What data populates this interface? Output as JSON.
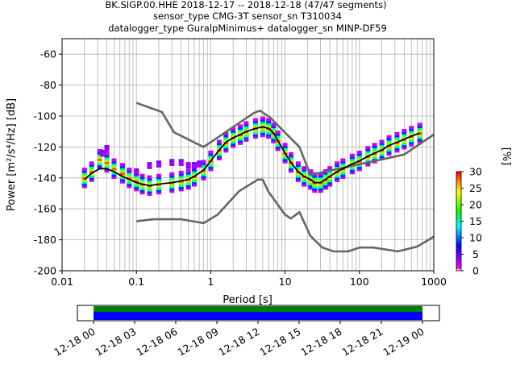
{
  "title_lines": [
    "BK.SIGP.00.HHE   2018-12-17 -- 2018-12-18  (47/47 segments)",
    "sensor_type CMG-3T sensor_sn T310034",
    "datalogger_type GuralpMinimus+ datalogger_sn MINP-DF59"
  ],
  "chart_data": {
    "type": "line",
    "title": "BK.SIGP.00.HHE   2018-12-17 -- 2018-12-18  (47/47 segments)",
    "xlabel": "Period [s]",
    "ylabel": "Power [m²/s⁴/Hz] [dB]",
    "xscale": "log",
    "xlim": [
      0.01,
      1000
    ],
    "ylim": [
      -200,
      -50
    ],
    "x_tick_labels": [
      "0.01",
      "0.1",
      "1",
      "10",
      "100",
      "1000"
    ],
    "y_ticks": [
      -200,
      -180,
      -160,
      -140,
      -120,
      -100,
      -80,
      -60
    ],
    "grid": true,
    "series": [
      {
        "name": "",
        "role": "NHNM",
        "color": "#666666",
        "x": [
          0.1,
          0.22,
          0.32,
          0.8,
          3.8,
          4.6,
          6.3,
          15.6,
          21.9,
          400,
          1000
        ],
        "y": [
          -91.5,
          -97.4,
          -110.5,
          -120,
          -98,
          -96.5,
          -101,
          -120,
          -138,
          -124.9,
          -112
        ]
      },
      {
        "name": "",
        "role": "NLNM",
        "color": "#666666",
        "x": [
          0.1,
          0.17,
          0.4,
          0.8,
          1.24,
          2.4,
          4.3,
          5.0,
          6.0,
          10.0,
          12.0,
          15.6,
          21.9,
          31.6,
          45,
          70,
          101,
          154,
          328,
          600,
          1000
        ],
        "y": [
          -168,
          -166.7,
          -166.7,
          -169.2,
          -163.7,
          -148.6,
          -141.1,
          -141.1,
          -149,
          -163.8,
          -166.2,
          -162.1,
          -177.5,
          -185,
          -187.5,
          -187.5,
          -185,
          -185,
          -187.5,
          -184.4,
          -178
        ]
      },
      {
        "name": "",
        "role": "mode",
        "color": "#000000",
        "x": [
          0.02,
          0.025,
          0.032,
          0.04,
          0.05,
          0.065,
          0.08,
          0.1,
          0.12,
          0.15,
          0.2,
          0.3,
          0.4,
          0.5,
          0.6,
          0.8,
          1.0,
          1.3,
          1.6,
          2.0,
          2.5,
          3.0,
          4.0,
          5.0,
          6.0,
          7.0,
          8.0,
          10,
          12,
          15,
          18,
          22,
          25,
          30,
          35,
          40,
          50,
          60,
          80,
          100,
          130,
          160,
          200,
          250,
          320,
          400,
          500,
          650
        ],
        "y": [
          -141,
          -137,
          -134,
          -134,
          -136,
          -139,
          -141,
          -143,
          -144,
          -145,
          -144,
          -143,
          -142,
          -141,
          -139,
          -135,
          -129,
          -122,
          -117,
          -114,
          -112,
          -110,
          -108,
          -107,
          -108,
          -111,
          -116,
          -124,
          -130,
          -136,
          -139,
          -141,
          -143,
          -143,
          -141,
          -139,
          -136,
          -134,
          -131,
          -129,
          -126,
          -124,
          -122,
          -119,
          -117,
          -115,
          -113,
          -111
        ]
      }
    ],
    "psd_density": {
      "colormap": "pqlx",
      "points": [
        [
          0.02,
          -140
        ],
        [
          0.025,
          -136
        ],
        [
          0.032,
          -128
        ],
        [
          0.04,
          -130
        ],
        [
          0.05,
          -134
        ],
        [
          0.065,
          -137
        ],
        [
          0.08,
          -140
        ],
        [
          0.1,
          -142
        ],
        [
          0.12,
          -144
        ],
        [
          0.15,
          -145
        ],
        [
          0.2,
          -144
        ],
        [
          0.3,
          -143
        ],
        [
          0.4,
          -142
        ],
        [
          0.5,
          -141
        ],
        [
          0.6,
          -139
        ],
        [
          0.8,
          -135
        ],
        [
          1.0,
          -129
        ],
        [
          1.3,
          -122
        ],
        [
          1.6,
          -117
        ],
        [
          2.0,
          -114
        ],
        [
          2.5,
          -112
        ],
        [
          3.0,
          -110
        ],
        [
          4.0,
          -108
        ],
        [
          5.0,
          -107
        ],
        [
          6.0,
          -108
        ],
        [
          7.0,
          -111
        ],
        [
          8.0,
          -116
        ],
        [
          10,
          -124
        ],
        [
          12,
          -130
        ],
        [
          15,
          -136
        ],
        [
          18,
          -139
        ],
        [
          22,
          -141
        ],
        [
          25,
          -143
        ],
        [
          30,
          -143
        ],
        [
          35,
          -141
        ],
        [
          40,
          -139
        ],
        [
          50,
          -136
        ],
        [
          60,
          -134
        ],
        [
          80,
          -131
        ],
        [
          100,
          -129
        ],
        [
          130,
          -126
        ],
        [
          160,
          -124
        ],
        [
          200,
          -122
        ],
        [
          250,
          -119
        ],
        [
          320,
          -117
        ],
        [
          400,
          -115
        ],
        [
          500,
          -113
        ],
        [
          650,
          -111
        ]
      ],
      "outliers": [
        [
          0.1,
          -136
        ],
        [
          0.15,
          -132
        ],
        [
          0.2,
          -131
        ],
        [
          0.3,
          -130
        ],
        [
          0.4,
          -130
        ],
        [
          0.5,
          -132
        ],
        [
          0.6,
          -132
        ],
        [
          0.7,
          -131
        ],
        [
          0.04,
          -121
        ],
        [
          0.035,
          -124
        ]
      ]
    },
    "colorbar": {
      "label": "[%]",
      "range": [
        0,
        30
      ],
      "ticks": [
        0,
        5,
        10,
        15,
        20,
        25,
        30
      ]
    }
  },
  "timeline": {
    "tick_labels": [
      "12-18 00",
      "12-18 03",
      "12-18 06",
      "12-18 09",
      "12-18 12",
      "12-18 15",
      "12-18 18",
      "12-18 21",
      "12-19 00"
    ],
    "coverage_colors": [
      "#008000",
      "#0000ff"
    ],
    "coverage_start_fraction": 0.0,
    "coverage_end_fraction": 1.0
  }
}
